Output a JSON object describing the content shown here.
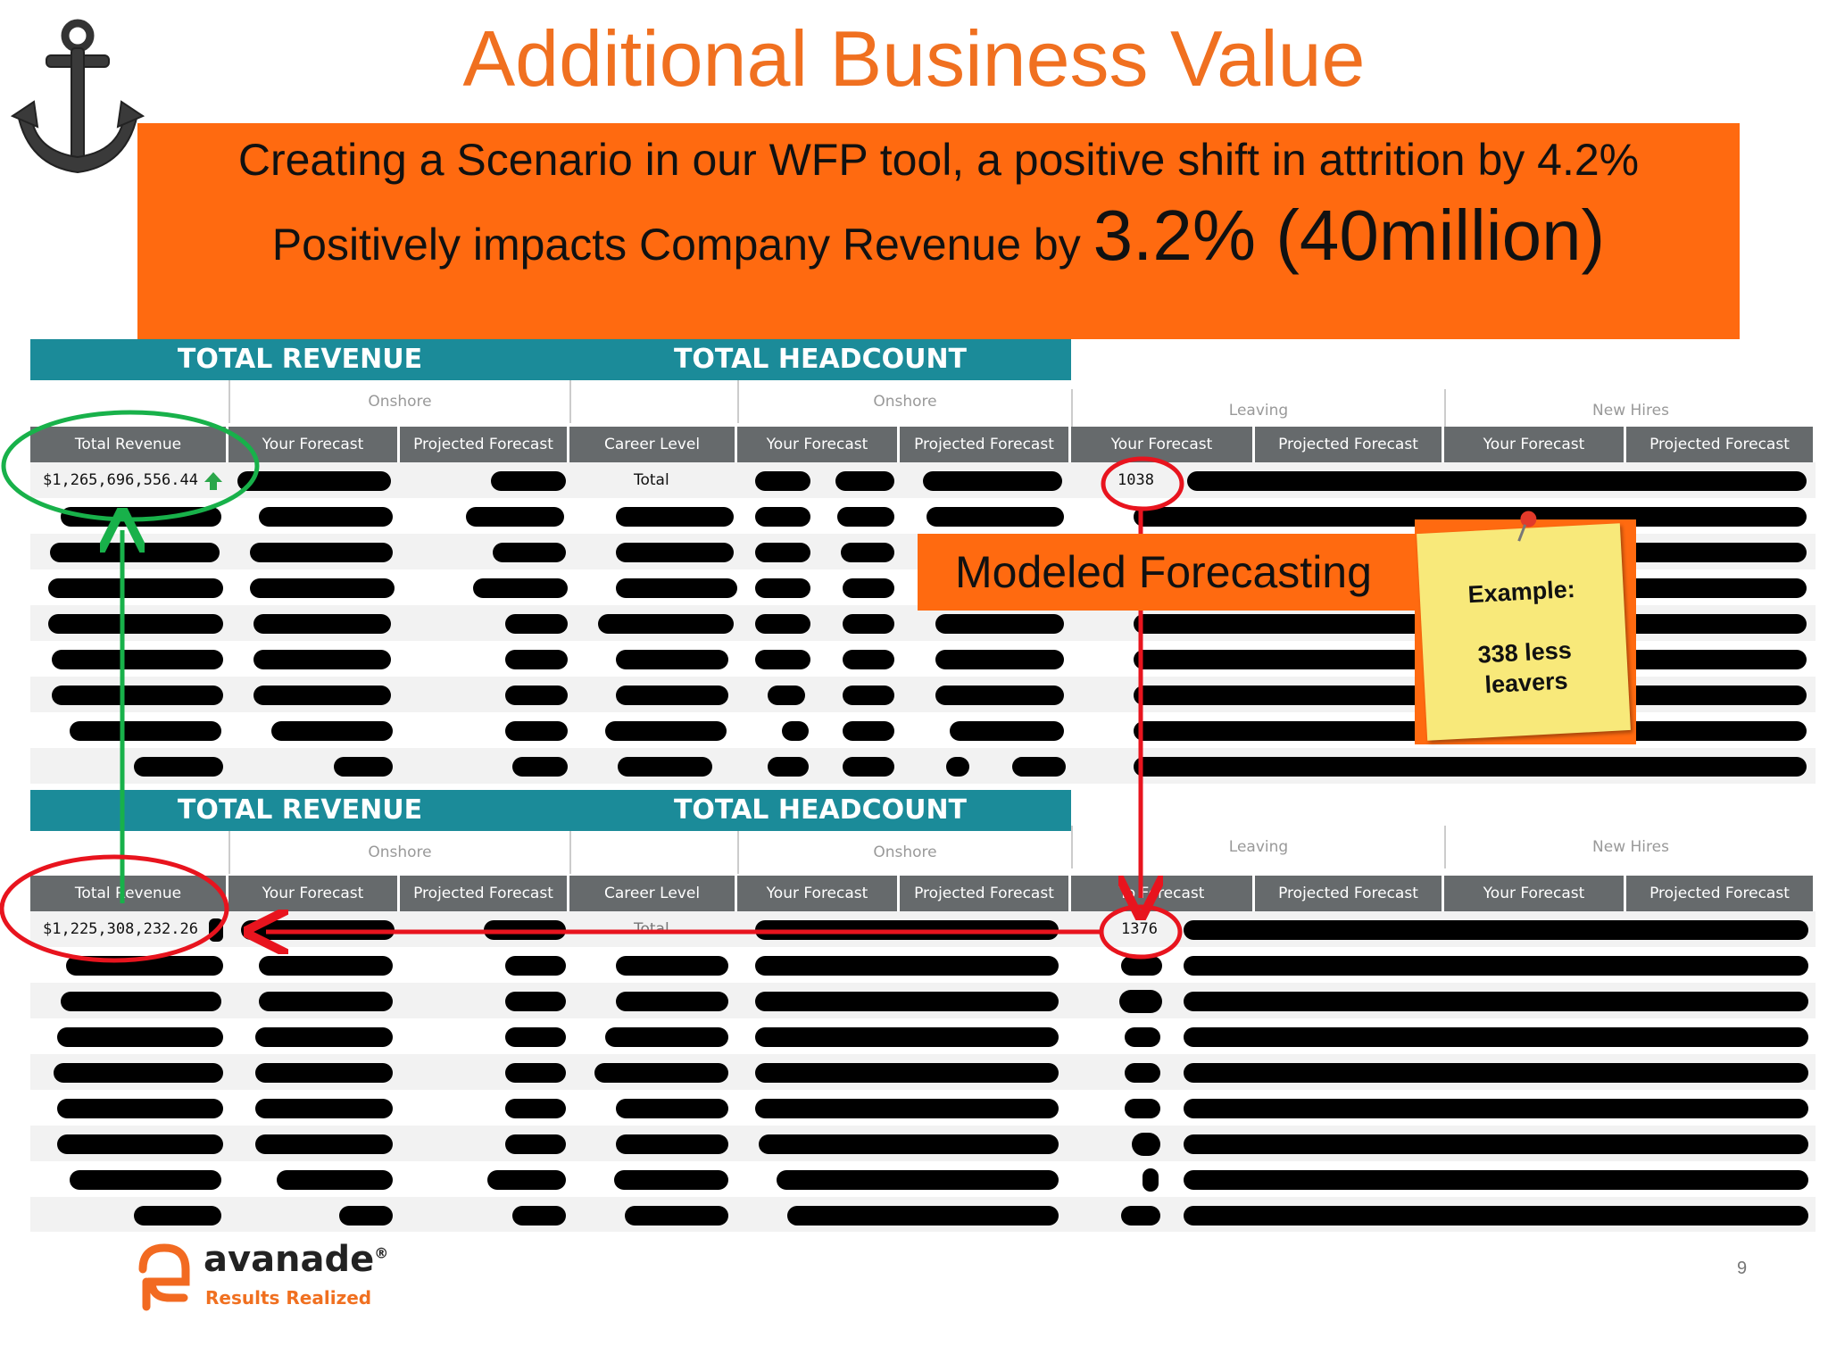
{
  "slide": {
    "title": "Additional Business Value",
    "banner_line1": "Creating a Scenario in our WFP tool, a positive shift in attrition by 4.2%",
    "banner_line2_prefix": "Positively impacts Company Revenue by ",
    "banner_line2_highlight": "3.2% (40million)",
    "page_number": "9"
  },
  "panels": [
    {
      "revenue_header": "TOTAL REVENUE",
      "headcount_header": "TOTAL HEADCOUNT",
      "group_onshore_revenue": "Onshore",
      "group_onshore_headcount": "Onshore",
      "group_leaving": "Leaving",
      "group_new_hires": "New Hires",
      "col_total_revenue": "Total Revenue",
      "col_your_forecast_1": "Your Forecast",
      "col_projected_forecast_1": "Projected Forecast",
      "col_career_level": "Career Level",
      "col_your_forecast_2": "Your Forecast",
      "col_projected_forecast_2": "Projected Forecast",
      "col_your_forecast_3": "Your Forecast",
      "col_projected_forecast_3": "Projected Forecast",
      "col_your_forecast_4": "Your Forecast",
      "col_projected_forecast_4": "Projected Forecast",
      "total_revenue_value": "$1,265,696,556.44",
      "career_level_value": "Total",
      "leaving_value": "1038"
    },
    {
      "revenue_header": "TOTAL REVENUE",
      "headcount_header": "TOTAL HEADCOUNT",
      "group_onshore_revenue": "Onshore",
      "group_onshore_headcount": "Onshore",
      "group_leaving": "Leaving",
      "group_new_hires": "New Hires",
      "col_total_revenue": "Total Revenue",
      "col_your_forecast_1": "Your Forecast",
      "col_projected_forecast_1": "Projected Forecast",
      "col_career_level": "Career Level",
      "col_your_forecast_2": "Your Forecast",
      "col_projected_forecast_2": "Projected Forecast",
      "col_your_forecast_3": "Yo Forecast",
      "col_projected_forecast_3": "Projected Forecast",
      "col_your_forecast_4": "Your Forecast",
      "col_projected_forecast_4": "Projected Forecast",
      "total_revenue_value": "$1,225,308,232.26",
      "career_level_value": "Total",
      "leaving_value": "1376"
    }
  ],
  "callout": {
    "label": "Modeled Forecasting"
  },
  "sticky_note": {
    "label": "Example:",
    "line1": "338 less",
    "line2": "leavers"
  },
  "logo": {
    "name": "avanade",
    "trademark": "®",
    "tagline": "Results Realized"
  },
  "colors": {
    "title": "#f07020",
    "banner": "#ff6a10",
    "table_band": "#1b8b99",
    "column_header": "#666a6c",
    "annotation_green": "#18b14a",
    "annotation_red": "#e8141e",
    "sticky_note": "#f8e97a"
  }
}
